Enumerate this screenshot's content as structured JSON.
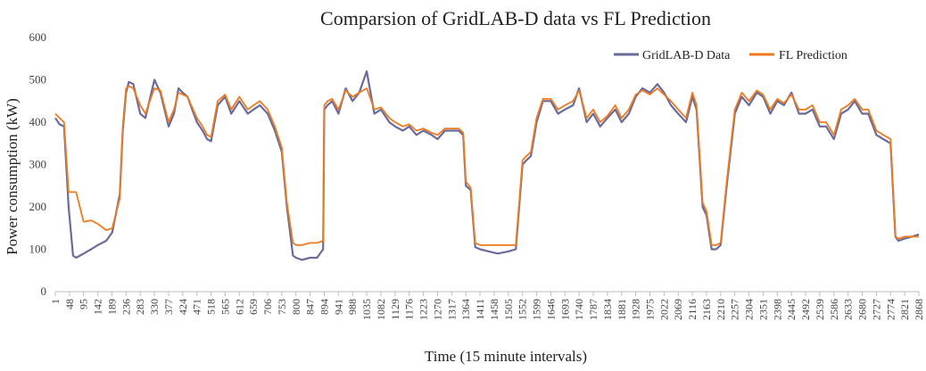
{
  "chart_data": {
    "type": "line",
    "title": "Comparsion of GridLAB-D data vs FL Prediction",
    "xlabel": "Time (15 minute intervals)",
    "ylabel": "Power consumption (kW)",
    "ylim": [
      0,
      600
    ],
    "yticks": [
      0,
      100,
      200,
      300,
      400,
      500,
      600
    ],
    "xlim": [
      1,
      2868
    ],
    "xticks": [
      1,
      48,
      95,
      142,
      189,
      236,
      283,
      330,
      377,
      424,
      471,
      518,
      565,
      612,
      659,
      706,
      753,
      800,
      847,
      894,
      941,
      988,
      1035,
      1082,
      1129,
      1176,
      1223,
      1270,
      1317,
      1364,
      1411,
      1458,
      1505,
      1552,
      1599,
      1646,
      1693,
      1740,
      1787,
      1834,
      1881,
      1928,
      1975,
      2022,
      2069,
      2116,
      2163,
      2210,
      2257,
      2304,
      2351,
      2398,
      2445,
      2492,
      2539,
      2586,
      2633,
      2680,
      2727,
      2774,
      2821,
      2868
    ],
    "grid": false,
    "legend_position": "top-right",
    "series": [
      {
        "name": "GridLAB-D Data",
        "color": "#6b6b9a",
        "x": [
          1,
          15,
          30,
          45,
          60,
          70,
          95,
          120,
          142,
          170,
          190,
          215,
          225,
          236,
          245,
          260,
          283,
          300,
          320,
          330,
          350,
          377,
          395,
          410,
          424,
          440,
          471,
          490,
          505,
          518,
          540,
          565,
          585,
          612,
          640,
          659,
          680,
          706,
          730,
          753,
          770,
          790,
          800,
          820,
          847,
          870,
          890,
          894,
          905,
          920,
          941,
          965,
          988,
          1010,
          1035,
          1060,
          1082,
          1110,
          1129,
          1155,
          1176,
          1200,
          1223,
          1250,
          1270,
          1295,
          1317,
          1340,
          1355,
          1364,
          1380,
          1395,
          1411,
          1440,
          1470,
          1505,
          1530,
          1552,
          1565,
          1580,
          1599,
          1620,
          1646,
          1670,
          1693,
          1720,
          1740,
          1765,
          1787,
          1810,
          1834,
          1860,
          1881,
          1905,
          1928,
          1950,
          1975,
          2000,
          2022,
          2045,
          2069,
          2095,
          2116,
          2130,
          2150,
          2163,
          2180,
          2195,
          2210,
          2230,
          2257,
          2280,
          2304,
          2330,
          2351,
          2375,
          2398,
          2420,
          2445,
          2470,
          2492,
          2515,
          2539,
          2560,
          2586,
          2610,
          2633,
          2655,
          2680,
          2700,
          2727,
          2750,
          2774,
          2790,
          2800,
          2821,
          2845,
          2868
        ],
        "y": [
          410,
          395,
          390,
          200,
          85,
          80,
          90,
          100,
          110,
          120,
          140,
          230,
          380,
          470,
          495,
          490,
          420,
          410,
          470,
          500,
          470,
          390,
          420,
          480,
          470,
          460,
          400,
          380,
          360,
          355,
          440,
          460,
          420,
          450,
          420,
          430,
          440,
          420,
          380,
          330,
          200,
          85,
          80,
          75,
          80,
          80,
          100,
          430,
          440,
          450,
          420,
          480,
          450,
          470,
          520,
          420,
          430,
          400,
          390,
          380,
          390,
          370,
          380,
          370,
          360,
          380,
          380,
          380,
          370,
          250,
          240,
          105,
          100,
          95,
          90,
          95,
          100,
          300,
          310,
          320,
          400,
          450,
          450,
          420,
          430,
          440,
          480,
          400,
          420,
          390,
          410,
          430,
          400,
          420,
          460,
          480,
          470,
          490,
          470,
          440,
          420,
          400,
          460,
          430,
          200,
          180,
          100,
          100,
          110,
          250,
          420,
          460,
          440,
          470,
          460,
          420,
          450,
          440,
          470,
          420,
          420,
          430,
          390,
          390,
          360,
          420,
          430,
          450,
          420,
          420,
          370,
          360,
          350,
          130,
          120,
          125,
          130,
          135
        ]
      },
      {
        "name": "FL Prediction",
        "color": "#f07a1e",
        "x": [
          1,
          15,
          30,
          45,
          60,
          70,
          95,
          120,
          142,
          170,
          190,
          215,
          225,
          236,
          245,
          260,
          283,
          300,
          320,
          330,
          350,
          377,
          395,
          410,
          424,
          440,
          471,
          490,
          505,
          518,
          540,
          565,
          585,
          612,
          640,
          659,
          680,
          706,
          730,
          753,
          770,
          790,
          800,
          820,
          847,
          870,
          890,
          894,
          905,
          920,
          941,
          965,
          988,
          1010,
          1035,
          1060,
          1082,
          1110,
          1129,
          1155,
          1176,
          1200,
          1223,
          1250,
          1270,
          1295,
          1317,
          1340,
          1355,
          1364,
          1380,
          1395,
          1411,
          1440,
          1470,
          1505,
          1530,
          1552,
          1565,
          1580,
          1599,
          1620,
          1646,
          1670,
          1693,
          1720,
          1740,
          1765,
          1787,
          1810,
          1834,
          1860,
          1881,
          1905,
          1928,
          1950,
          1975,
          2000,
          2022,
          2045,
          2069,
          2095,
          2116,
          2130,
          2150,
          2163,
          2180,
          2195,
          2210,
          2230,
          2257,
          2280,
          2304,
          2330,
          2351,
          2375,
          2398,
          2420,
          2445,
          2470,
          2492,
          2515,
          2539,
          2560,
          2586,
          2610,
          2633,
          2655,
          2680,
          2700,
          2727,
          2750,
          2774,
          2790,
          2800,
          2821,
          2845,
          2868
        ],
        "y": [
          420,
          410,
          400,
          235,
          235,
          235,
          165,
          168,
          160,
          145,
          150,
          220,
          390,
          480,
          485,
          480,
          440,
          420,
          460,
          480,
          475,
          400,
          430,
          470,
          465,
          460,
          410,
          390,
          370,
          365,
          450,
          465,
          430,
          460,
          430,
          440,
          450,
          430,
          390,
          340,
          210,
          115,
          110,
          110,
          115,
          115,
          120,
          440,
          450,
          455,
          430,
          475,
          460,
          470,
          480,
          430,
          435,
          410,
          400,
          390,
          395,
          380,
          385,
          375,
          370,
          385,
          385,
          385,
          375,
          260,
          245,
          115,
          110,
          110,
          110,
          110,
          110,
          310,
          320,
          330,
          410,
          455,
          455,
          430,
          440,
          450,
          475,
          410,
          430,
          400,
          415,
          440,
          410,
          430,
          465,
          475,
          465,
          480,
          465,
          450,
          430,
          410,
          470,
          440,
          210,
          190,
          110,
          110,
          115,
          260,
          430,
          470,
          450,
          475,
          465,
          430,
          455,
          445,
          465,
          430,
          430,
          440,
          400,
          400,
          370,
          430,
          440,
          455,
          430,
          430,
          380,
          370,
          360,
          130,
          125,
          130,
          130,
          130
        ]
      }
    ]
  }
}
